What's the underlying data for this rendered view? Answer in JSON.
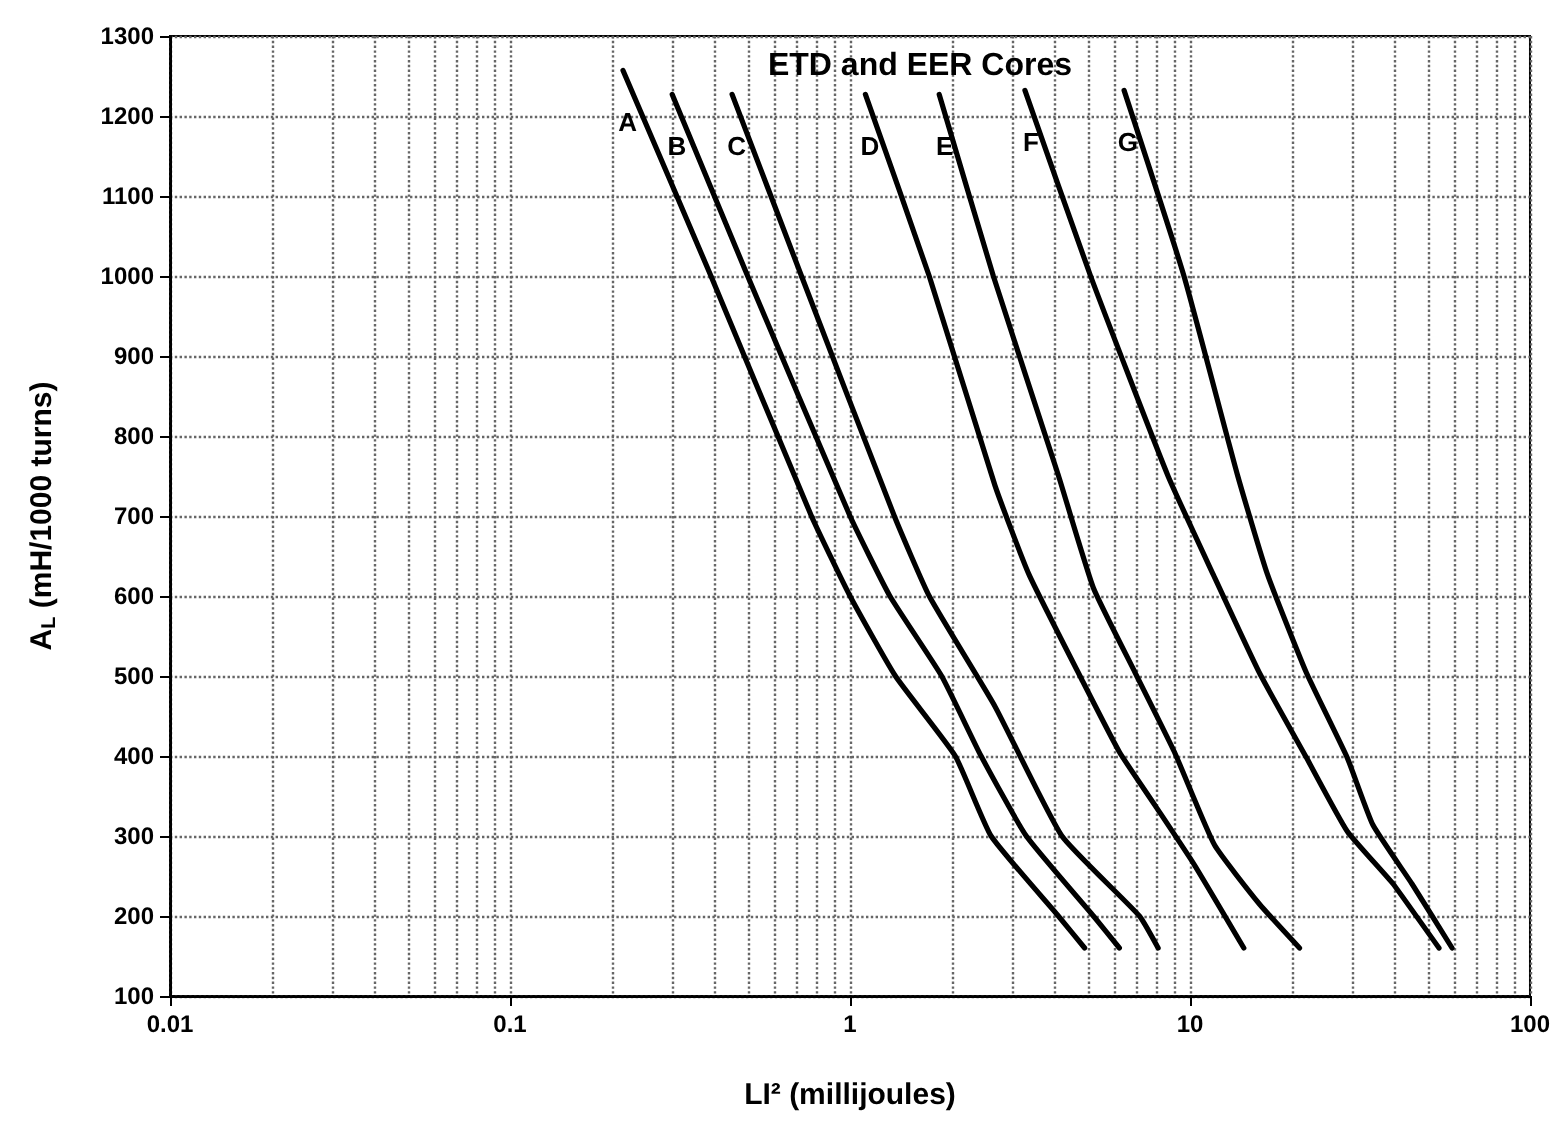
{
  "chart_data": {
    "type": "line",
    "title": "ETD and EER Cores",
    "xlabel": "LI² (millijoules)",
    "ylabel": "A$_{L}$ (mH/1000 turns)",
    "log": "x",
    "xlim": [
      0.01,
      100
    ],
    "xticks": [
      0.01,
      0.1,
      1,
      10,
      100
    ],
    "ylim": [
      100,
      1300
    ],
    "yticks": [
      100,
      200,
      300,
      400,
      500,
      600,
      700,
      800,
      900,
      1000,
      1100,
      1200,
      1300
    ],
    "grid": true,
    "legend": false,
    "marker": "none",
    "line_style": "solid",
    "series": [
      {
        "name": "A",
        "color": "#000000",
        "x": [
          0.215,
          0.39,
          0.77,
          1.0,
          1.36,
          2.04,
          2.6,
          4.1,
          4.9
        ],
        "values": [
          1257,
          1000,
          700,
          600,
          500,
          400,
          300,
          200,
          160
        ]
      },
      {
        "name": "B",
        "color": "#000000",
        "x": [
          0.3,
          0.5,
          1.0,
          1.31,
          1.86,
          2.43,
          3.3,
          5.2,
          6.2
        ],
        "values": [
          1227,
          1000,
          700,
          600,
          500,
          400,
          300,
          200,
          160
        ]
      },
      {
        "name": "C",
        "color": "#000000",
        "x": [
          0.45,
          0.72,
          1.35,
          1.71,
          2.67,
          4.2,
          7.1,
          8.06
        ],
        "values": [
          1227,
          1000,
          700,
          600,
          462,
          300,
          200,
          160
        ]
      },
      {
        "name": "D",
        "color": "#000000",
        "x": [
          1.11,
          1.71,
          2.67,
          3.36,
          4.8,
          6.2,
          7.9,
          10.3,
          14.4
        ],
        "values": [
          1227,
          1000,
          738,
          627,
          496,
          405,
          338,
          264,
          160
        ]
      },
      {
        "name": "E",
        "color": "#000000",
        "x": [
          1.83,
          2.64,
          4.1,
          5.2,
          6.9,
          9.0,
          11.8,
          16,
          21
        ],
        "values": [
          1227,
          1000,
          751,
          610,
          504,
          405,
          289,
          215,
          160
        ]
      },
      {
        "name": "F",
        "color": "#000000",
        "x": [
          3.27,
          5.1,
          8.6,
          11.7,
          16,
          22,
          29,
          39.6,
          54
        ],
        "values": [
          1232,
          1000,
          751,
          627,
          504,
          398,
          306,
          240,
          160
        ]
      },
      {
        "name": "G",
        "color": "#000000",
        "x": [
          6.4,
          9.6,
          13.8,
          16.9,
          22,
          29,
          34.5,
          45,
          59
        ],
        "values": [
          1232,
          1000,
          751,
          627,
          504,
          398,
          314,
          240,
          160
        ]
      }
    ]
  }
}
